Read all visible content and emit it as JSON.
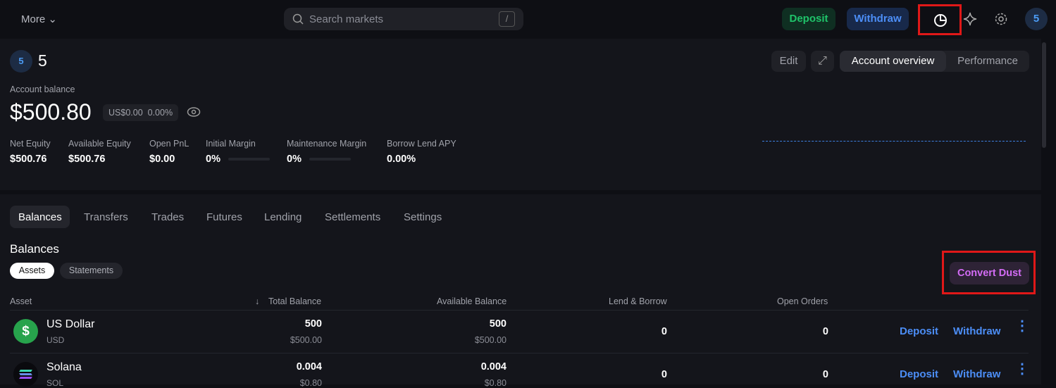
{
  "topbar": {
    "more": "More",
    "search_placeholder": "Search markets",
    "shortcut": "/",
    "deposit": "Deposit",
    "withdraw": "Withdraw",
    "avatar": "5"
  },
  "account": {
    "avatar": "5",
    "name": "5",
    "edit": "Edit",
    "tabs": [
      "Account overview",
      "Performance"
    ],
    "balance_label": "Account balance",
    "balance": "$500.80",
    "change": "US$0.00",
    "change_pct": "0.00%",
    "stats": [
      {
        "label": "Net Equity",
        "value": "$500.76"
      },
      {
        "label": "Available Equity",
        "value": "$500.76"
      },
      {
        "label": "Open PnL",
        "value": "$0.00"
      },
      {
        "label": "Initial Margin",
        "value": "0%",
        "bar": 0
      },
      {
        "label": "Maintenance Margin",
        "value": "0%",
        "bar": 0
      },
      {
        "label": "Borrow Lend APY",
        "value": "0.00%"
      }
    ]
  },
  "tabs": [
    "Balances",
    "Transfers",
    "Trades",
    "Futures",
    "Lending",
    "Settlements",
    "Settings"
  ],
  "balances": {
    "title": "Balances",
    "subtabs": [
      "Assets",
      "Statements"
    ],
    "convert_dust": "Convert Dust",
    "columns": [
      "Asset",
      "Total Balance",
      "Available Balance",
      "Lend & Borrow",
      "Open Orders"
    ],
    "rows": [
      {
        "name": "US Dollar",
        "symbol": "USD",
        "total": "500",
        "total_usd": "$500.00",
        "avail": "500",
        "avail_usd": "$500.00",
        "lend": "0",
        "orders": "0",
        "deposit": "Deposit",
        "withdraw": "Withdraw"
      },
      {
        "name": "Solana",
        "symbol": "SOL",
        "total": "0.004",
        "total_usd": "$0.80",
        "avail": "0.004",
        "avail_usd": "$0.80",
        "lend": "0",
        "orders": "0",
        "deposit": "Deposit",
        "withdraw": "Withdraw"
      }
    ]
  },
  "colors": {
    "accent": "#4c8ef7",
    "deposit": "#1fc46a",
    "dust": "#d36cf5"
  }
}
